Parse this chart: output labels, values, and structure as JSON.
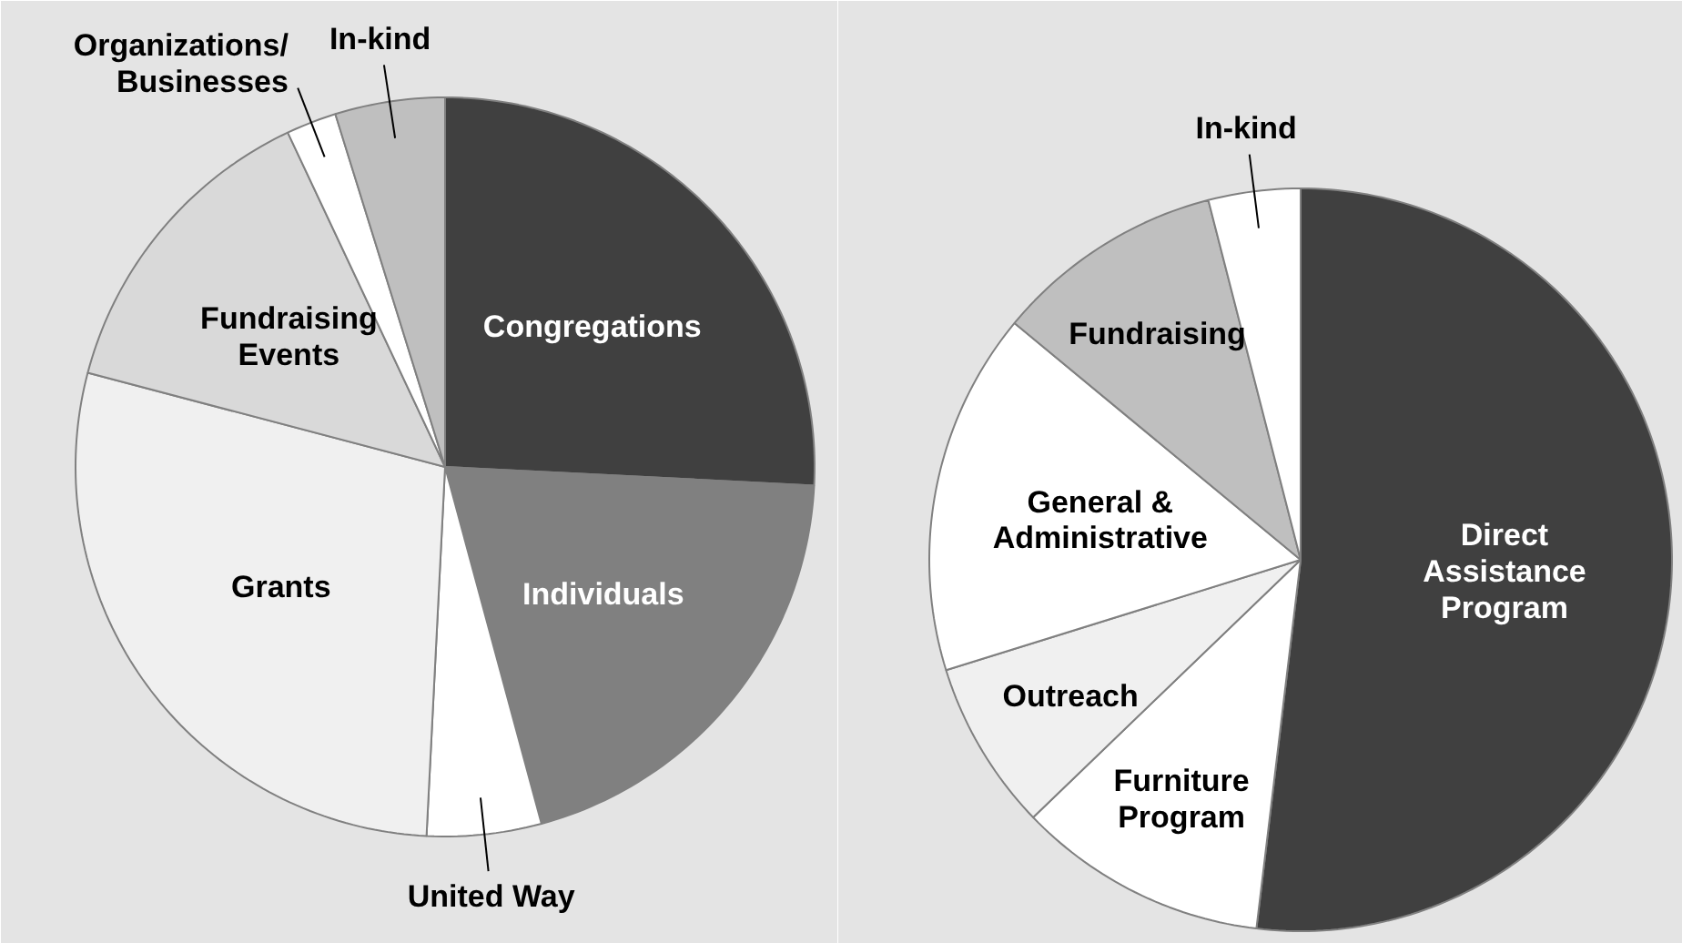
{
  "chart_data": [
    {
      "type": "pie",
      "categories": [
        "Congregations",
        "Individuals",
        "United Way",
        "Grants",
        "Fundraising\nEvents",
        "Organizations/\nBusinesses",
        "In-kind"
      ],
      "values": [
        25.8,
        20.0,
        5.0,
        28.3,
        13.9,
        2.2,
        4.8
      ],
      "colors": [
        "#404040",
        "#808080",
        "#ffffff",
        "#f0f0f0",
        "#d9d9d9",
        "#ffffff",
        "#bfbfbf"
      ]
    },
    {
      "type": "pie",
      "categories": [
        "Direct\nAssistance\nProgram",
        "Furniture\nProgram",
        "Outreach",
        "General &\nAdministrative",
        "Fundraising",
        "In-kind"
      ],
      "values": [
        51.9,
        10.9,
        7.4,
        15.8,
        10.0,
        4.0
      ],
      "colors": [
        "#404040",
        "#ffffff",
        "#f0f0f0",
        "#ffffff",
        "#bfbfbf",
        "#ffffff"
      ]
    }
  ]
}
